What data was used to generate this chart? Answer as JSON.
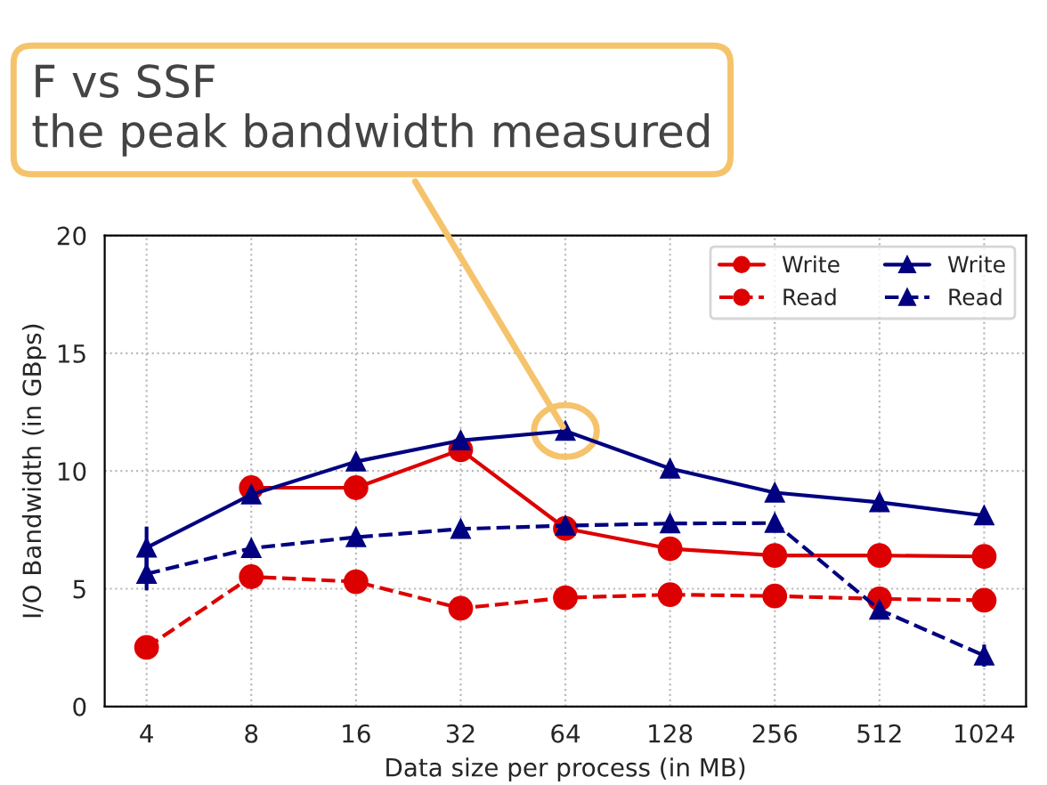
{
  "chart_data": {
    "type": "line",
    "xlabel": "Data size per process (in MB)",
    "ylabel": "I/O Bandwidth (in GBps)",
    "categories": [
      "4",
      "8",
      "16",
      "32",
      "64",
      "128",
      "256",
      "512",
      "1024"
    ],
    "series": [
      {
        "name": "Write",
        "color": "#dd0000",
        "marker": "circle",
        "line_style": "solid",
        "values": [
          null,
          9.29,
          9.29,
          10.9,
          7.56,
          6.7,
          6.41,
          6.41,
          6.37
        ],
        "errors": [
          null,
          0.35,
          null,
          null,
          null,
          null,
          null,
          null,
          null
        ]
      },
      {
        "name": "Read",
        "color": "#dd0000",
        "marker": "circle",
        "line_style": "dashed",
        "values": [
          2.51,
          5.51,
          5.3,
          4.17,
          4.62,
          4.75,
          4.69,
          4.57,
          4.51
        ]
      },
      {
        "name": "Write",
        "color": "#000080",
        "marker": "triangle",
        "line_style": "solid",
        "values": [
          6.74,
          9.0,
          10.4,
          11.3,
          11.7,
          10.1,
          9.08,
          8.67,
          8.11
        ],
        "errors": [
          0.9,
          null,
          null,
          null,
          null,
          null,
          null,
          null,
          null
        ]
      },
      {
        "name": "Read",
        "color": "#000080",
        "marker": "triangle",
        "line_style": "dashed",
        "values": [
          5.63,
          6.72,
          7.19,
          7.54,
          7.68,
          7.77,
          7.79,
          4.11,
          2.16
        ],
        "errors": [
          0.7,
          null,
          null,
          null,
          null,
          null,
          null,
          null,
          0.47
        ]
      }
    ],
    "ylim": [
      0,
      20
    ],
    "yticks": [
      0,
      5,
      10,
      15,
      20
    ],
    "grid": true,
    "legend": "top right",
    "annotations": [
      "F vs SSF",
      {
        "text": "the peak bandwidth measured",
        "x": "64",
        "y": 11.7
      }
    ]
  }
}
